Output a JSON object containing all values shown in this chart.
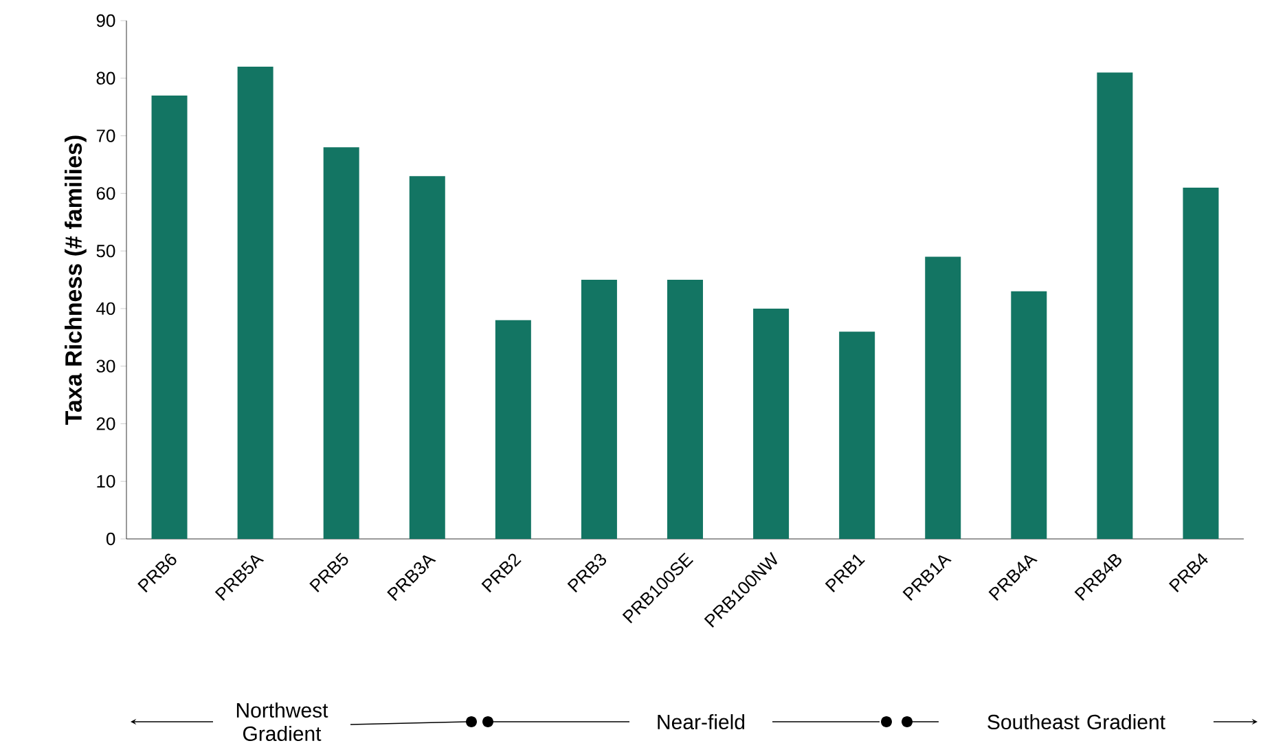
{
  "chart_data": {
    "type": "bar",
    "ylabel": "Taxa Richness (# families)",
    "categories": [
      "PRB6",
      "PRB5A",
      "PRB5",
      "PRB3A",
      "PRB2",
      "PRB3",
      "PRB100SE",
      "PRB100NW",
      "PRB1",
      "PRB1A",
      "PRB4A",
      "PRB4B",
      "PRB4"
    ],
    "values": [
      77,
      82,
      68,
      63,
      38,
      45,
      45,
      40,
      36,
      49,
      43,
      81,
      61
    ],
    "color": "#137563",
    "ylim": [
      0,
      90
    ],
    "yticks": [
      0,
      10,
      20,
      30,
      40,
      50,
      60,
      70,
      80,
      90
    ],
    "grid": false,
    "annotations": [
      "Northwest Gradient",
      "Near-field",
      "Southeast Gradient"
    ]
  }
}
